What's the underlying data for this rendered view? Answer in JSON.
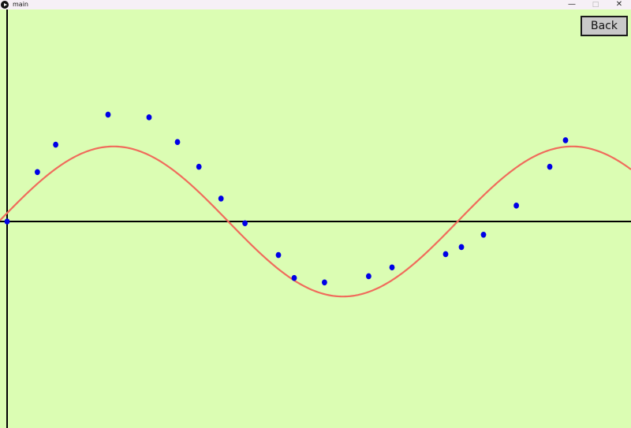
{
  "window": {
    "title": "main",
    "controls": {
      "minimize": "—",
      "maximize": "□",
      "close": "✕"
    }
  },
  "toolbar": {
    "back_label": "Back"
  },
  "colors": {
    "background": "#dbfdb3",
    "curve": "#f06c5c",
    "points": "#0000e6",
    "axes": "#000000"
  },
  "chart_data": {
    "type": "scatter",
    "title": "",
    "xlabel": "",
    "ylabel": "",
    "xlim": [
      0,
      1
    ],
    "ylim": [
      -1.2,
      1.2
    ],
    "grid": false,
    "legend": "none",
    "series": [
      {
        "kind": "points",
        "x": [
          0.0,
          0.048,
          0.077,
          0.16,
          0.225,
          0.27,
          0.304,
          0.339,
          0.377,
          0.43,
          0.455,
          0.503,
          0.573,
          0.61,
          0.695,
          0.72,
          0.755,
          0.807,
          0.86,
          0.885
        ],
        "y": [
          0.0,
          0.56,
          0.87,
          1.21,
          1.18,
          0.9,
          0.62,
          0.26,
          -0.02,
          -0.38,
          -0.64,
          -0.69,
          -0.62,
          -0.52,
          -0.37,
          -0.29,
          -0.15,
          0.18,
          0.62,
          0.92
        ]
      },
      {
        "kind": "fit-curve",
        "amplitude": 1.0,
        "period": 0.727,
        "phase_shift": -0.013,
        "offset": -0.16
      }
    ]
  }
}
